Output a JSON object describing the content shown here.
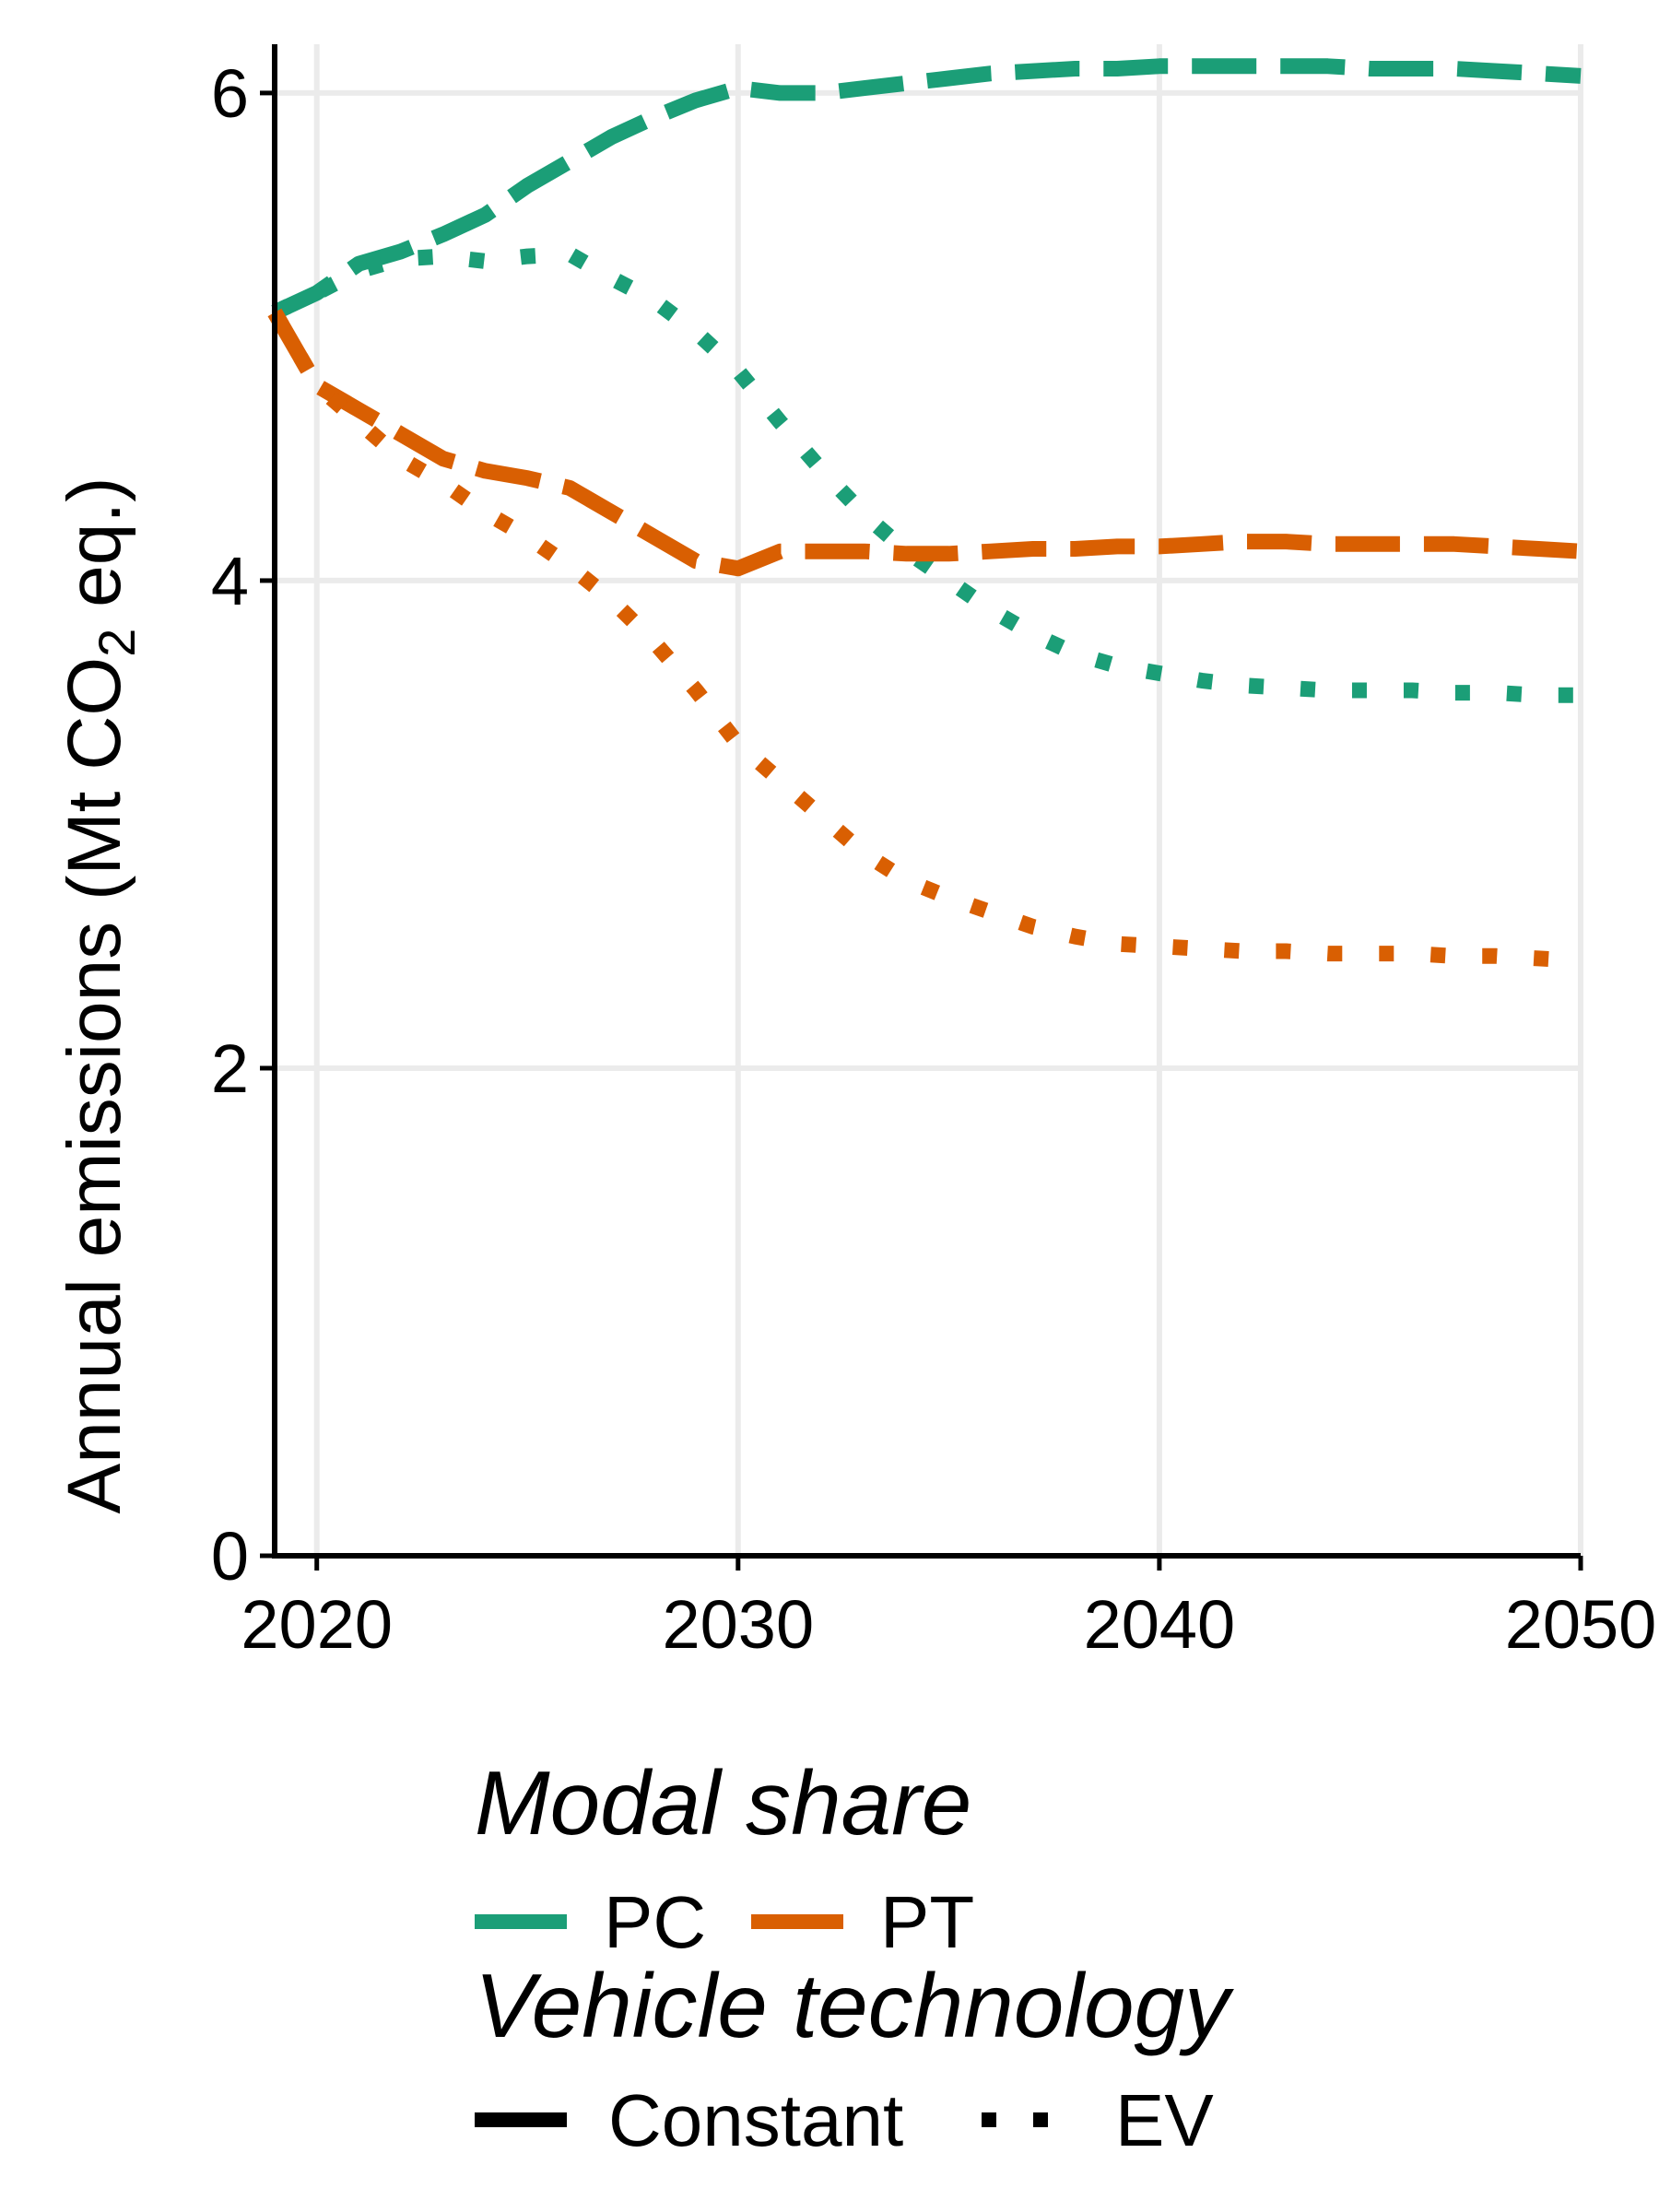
{
  "chart_data": {
    "type": "line",
    "title": "",
    "xlabel": "",
    "ylabel": {
      "prefix": "Annual emissions (Mt CO",
      "subscript": "2",
      "suffix": " eq.)"
    },
    "xlim": [
      2019,
      2050
    ],
    "ylim": [
      0,
      6.2
    ],
    "xticks": [
      2020,
      2030,
      2040,
      2050
    ],
    "yticks": [
      0,
      2,
      4,
      6
    ],
    "grid": true,
    "legend_position": "bottom",
    "x": [
      2019,
      2020,
      2021,
      2022,
      2023,
      2024,
      2025,
      2026,
      2027,
      2028,
      2029,
      2030,
      2031,
      2032,
      2033,
      2034,
      2035,
      2036,
      2037,
      2038,
      2039,
      2040,
      2041,
      2042,
      2043,
      2044,
      2045,
      2046,
      2047,
      2048,
      2049,
      2050
    ],
    "series": [
      {
        "name": "PC",
        "modal_share": "PC",
        "vehicle_technology": "Constant",
        "color": "#1b9e77",
        "values": [
          5.1,
          5.18,
          5.3,
          5.35,
          5.42,
          5.5,
          5.62,
          5.72,
          5.82,
          5.9,
          5.97,
          6.02,
          6.0,
          6.0,
          6.02,
          6.04,
          6.06,
          6.08,
          6.09,
          6.1,
          6.1,
          6.11,
          6.11,
          6.11,
          6.11,
          6.11,
          6.1,
          6.1,
          6.1,
          6.09,
          6.08,
          6.07
        ]
      },
      {
        "name": "PC",
        "modal_share": "PC",
        "vehicle_technology": "EV",
        "color": "#1b9e77",
        "values": [
          5.1,
          5.18,
          5.27,
          5.32,
          5.33,
          5.31,
          5.33,
          5.34,
          5.24,
          5.15,
          5.02,
          4.86,
          4.65,
          4.45,
          4.27,
          4.12,
          4.0,
          3.88,
          3.78,
          3.7,
          3.65,
          3.62,
          3.59,
          3.57,
          3.56,
          3.55,
          3.55,
          3.55,
          3.54,
          3.54,
          3.53,
          3.53
        ]
      },
      {
        "name": "PT",
        "modal_share": "PT",
        "vehicle_technology": "Constant",
        "color": "#d95f02",
        "values": [
          5.1,
          4.8,
          4.7,
          4.6,
          4.5,
          4.45,
          4.42,
          4.38,
          4.28,
          4.18,
          4.08,
          4.05,
          4.12,
          4.12,
          4.12,
          4.11,
          4.11,
          4.12,
          4.13,
          4.13,
          4.14,
          4.14,
          4.15,
          4.16,
          4.16,
          4.15,
          4.15,
          4.15,
          4.15,
          4.14,
          4.13,
          4.12
        ]
      },
      {
        "name": "PT",
        "modal_share": "PT",
        "vehicle_technology": "EV",
        "color": "#d95f02",
        "values": [
          5.1,
          4.8,
          4.65,
          4.5,
          4.4,
          4.28,
          4.18,
          4.06,
          3.92,
          3.75,
          3.55,
          3.33,
          3.18,
          3.03,
          2.88,
          2.77,
          2.7,
          2.64,
          2.58,
          2.54,
          2.51,
          2.5,
          2.49,
          2.48,
          2.48,
          2.47,
          2.47,
          2.47,
          2.46,
          2.46,
          2.45,
          2.44
        ]
      }
    ],
    "legend": {
      "modal_share_title": "Modal share",
      "modal_share_items": [
        {
          "label": "PC",
          "color": "#1b9e77"
        },
        {
          "label": "PT",
          "color": "#d95f02"
        }
      ],
      "vehicle_technology_title": "Vehicle technology",
      "vehicle_technology_items": [
        {
          "label": "Constant",
          "style": "dashed"
        },
        {
          "label": "EV",
          "style": "dotted"
        }
      ]
    }
  }
}
